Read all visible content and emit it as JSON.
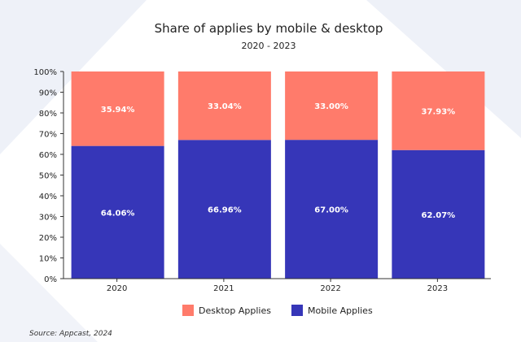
{
  "chart_data": {
    "type": "bar",
    "stacked": true,
    "title": "Share of applies by mobile & desktop",
    "subtitle": "2020 - 2023",
    "categories": [
      "2020",
      "2021",
      "2022",
      "2023"
    ],
    "series": [
      {
        "name": "Mobile Applies",
        "color": "#3636b8",
        "values": [
          64.06,
          66.96,
          67.0,
          62.07
        ],
        "labels": [
          "64.06%",
          "66.96%",
          "67.00%",
          "62.07%"
        ]
      },
      {
        "name": "Desktop Applies",
        "color": "#ff7b6b",
        "values": [
          35.94,
          33.04,
          33.0,
          37.93
        ],
        "labels": [
          "35.94%",
          "33.04%",
          "33.00%",
          "37.93%"
        ]
      }
    ],
    "ylim": [
      0,
      100
    ],
    "yticks": [
      "0%",
      "10%",
      "20%",
      "30%",
      "40%",
      "50%",
      "60%",
      "70%",
      "80%",
      "90%",
      "100%"
    ],
    "xlabel": "",
    "ylabel": "",
    "legend_position": "bottom",
    "legend": [
      "Desktop Applies",
      "Mobile Applies"
    ],
    "grid": false
  },
  "source": "Source: Appcast, 2024",
  "colors": {
    "background_shape": "#edf0f8",
    "axis": "#333333",
    "text": "#222222",
    "bar_label": "#ffffff"
  }
}
